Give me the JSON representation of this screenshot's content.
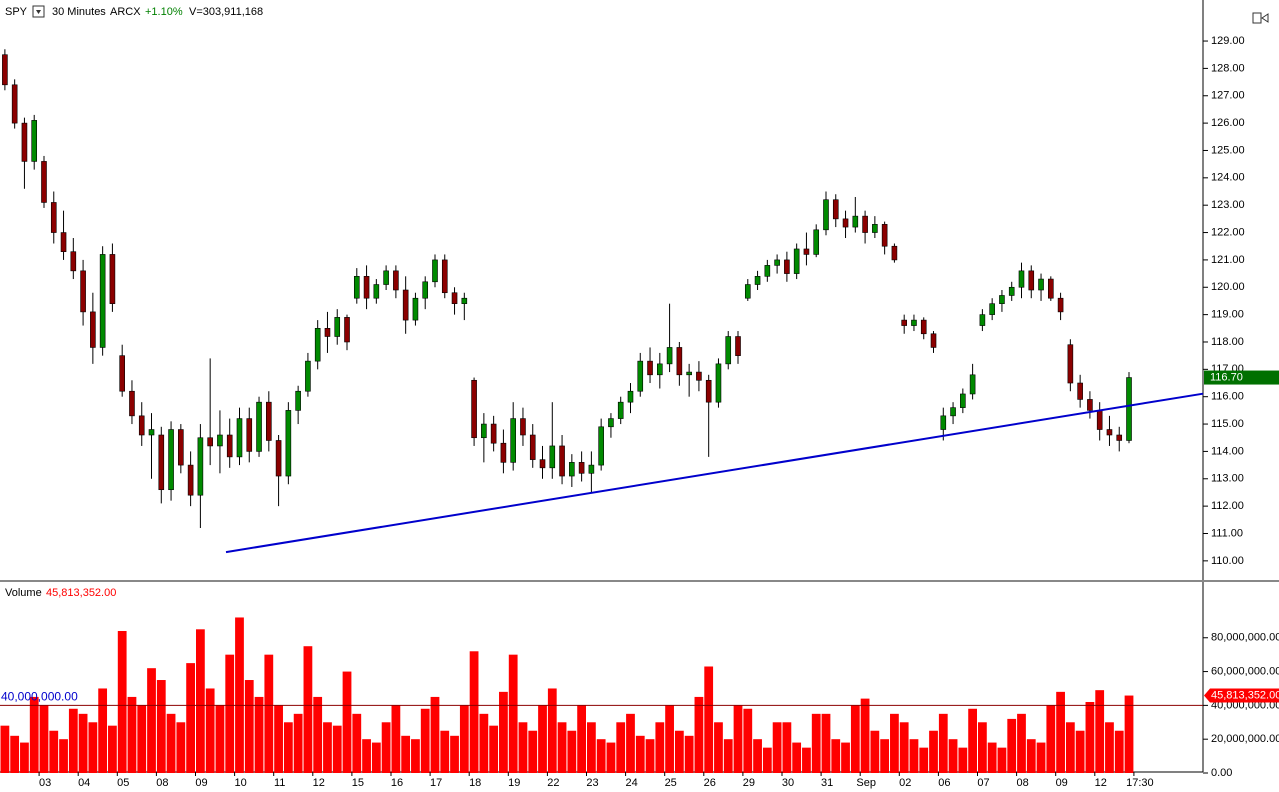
{
  "header": {
    "symbol": "SPY",
    "interval": "30 Minutes",
    "exchange": "ARCX",
    "change": "+1.10%",
    "volume_total": "V=303,911,168"
  },
  "chart_data": {
    "type": "candlestick",
    "days": [
      {
        "label": null,
        "candles": [
          [
            128.5,
            128.7,
            127.2,
            127.4
          ],
          [
            127.4,
            127.6,
            125.8,
            126.0
          ],
          [
            126.0,
            126.2,
            123.6,
            124.6
          ],
          [
            124.6,
            126.3,
            124.3,
            126.1
          ]
        ],
        "volumes": [
          28000000,
          22000000,
          18000000,
          45000000
        ]
      },
      {
        "label": "03",
        "candles": [
          [
            124.6,
            124.8,
            122.9,
            123.1
          ],
          [
            123.1,
            123.5,
            121.6,
            122.0
          ],
          [
            122.0,
            122.8,
            121.0,
            121.3
          ],
          [
            121.3,
            121.8,
            120.3,
            120.6
          ]
        ],
        "volumes": [
          40000000,
          25000000,
          20000000,
          38000000
        ]
      },
      {
        "label": "04",
        "candles": [
          [
            120.6,
            121.0,
            118.6,
            119.1
          ],
          [
            119.1,
            119.8,
            117.2,
            117.8
          ],
          [
            117.8,
            121.5,
            117.5,
            121.2
          ],
          [
            121.2,
            121.6,
            119.1,
            119.4
          ]
        ],
        "volumes": [
          35000000,
          30000000,
          50000000,
          28000000
        ]
      },
      {
        "label": "05",
        "candles": [
          [
            117.5,
            117.9,
            116.0,
            116.2
          ],
          [
            116.2,
            116.6,
            115.0,
            115.3
          ],
          [
            115.3,
            115.8,
            114.2,
            114.6
          ],
          [
            114.6,
            115.4,
            113.0,
            114.8
          ]
        ],
        "volumes": [
          84000000,
          45000000,
          40000000,
          62000000
        ]
      },
      {
        "label": "08",
        "candles": [
          [
            114.6,
            114.9,
            112.1,
            112.6
          ],
          [
            112.6,
            115.1,
            112.2,
            114.8
          ],
          [
            114.8,
            115.0,
            113.2,
            113.5
          ],
          [
            113.5,
            114.0,
            112.0,
            112.4
          ]
        ],
        "volumes": [
          55000000,
          35000000,
          30000000,
          65000000
        ]
      },
      {
        "label": "09",
        "candles": [
          [
            112.4,
            115.0,
            111.2,
            114.5
          ],
          [
            114.5,
            117.4,
            113.5,
            114.2
          ],
          [
            114.2,
            115.5,
            113.2,
            114.6
          ],
          [
            114.6,
            115.2,
            113.4,
            113.8
          ]
        ],
        "volumes": [
          85000000,
          50000000,
          40000000,
          70000000
        ]
      },
      {
        "label": "10",
        "candles": [
          [
            113.8,
            115.6,
            113.5,
            115.2
          ],
          [
            115.2,
            115.6,
            113.6,
            114.0
          ],
          [
            114.0,
            116.0,
            113.8,
            115.8
          ],
          [
            115.8,
            116.2,
            114.0,
            114.4
          ]
        ],
        "volumes": [
          92000000,
          55000000,
          45000000,
          70000000
        ]
      },
      {
        "label": "11",
        "candles": [
          [
            114.4,
            114.6,
            112.0,
            113.1
          ],
          [
            113.1,
            115.8,
            112.8,
            115.5
          ],
          [
            115.5,
            116.4,
            115.0,
            116.2
          ],
          [
            116.2,
            117.6,
            116.0,
            117.3
          ]
        ],
        "volumes": [
          40000000,
          30000000,
          35000000,
          75000000
        ]
      },
      {
        "label": "12",
        "candles": [
          [
            117.3,
            118.8,
            117.0,
            118.5
          ],
          [
            118.5,
            119.1,
            117.6,
            118.2
          ],
          [
            118.2,
            119.2,
            117.9,
            118.9
          ],
          [
            118.9,
            119.0,
            117.7,
            118.0
          ]
        ],
        "volumes": [
          45000000,
          30000000,
          28000000,
          60000000
        ]
      },
      {
        "label": "15",
        "candles": [
          [
            119.6,
            120.7,
            119.4,
            120.4
          ],
          [
            120.4,
            120.8,
            119.2,
            119.6
          ],
          [
            119.6,
            120.3,
            119.4,
            120.1
          ],
          [
            120.1,
            120.8,
            119.9,
            120.6
          ]
        ],
        "volumes": [
          35000000,
          20000000,
          18000000,
          30000000
        ]
      },
      {
        "label": "16",
        "candles": [
          [
            120.6,
            120.8,
            119.6,
            119.9
          ],
          [
            119.9,
            120.4,
            118.3,
            118.8
          ],
          [
            118.8,
            119.8,
            118.6,
            119.6
          ],
          [
            119.6,
            120.4,
            119.2,
            120.2
          ]
        ],
        "volumes": [
          40000000,
          22000000,
          20000000,
          38000000
        ]
      },
      {
        "label": "17",
        "candles": [
          [
            120.2,
            121.2,
            120.0,
            121.0
          ],
          [
            121.0,
            121.2,
            119.6,
            119.8
          ],
          [
            119.8,
            120.0,
            119.0,
            119.4
          ],
          [
            119.4,
            119.8,
            118.8,
            119.6
          ]
        ],
        "volumes": [
          45000000,
          25000000,
          22000000,
          40000000
        ]
      },
      {
        "label": "18",
        "candles": [
          [
            116.6,
            116.7,
            114.2,
            114.5
          ],
          [
            114.5,
            115.4,
            113.6,
            115.0
          ],
          [
            115.0,
            115.3,
            114.0,
            114.3
          ],
          [
            114.3,
            114.8,
            113.2,
            113.6
          ]
        ],
        "volumes": [
          72000000,
          35000000,
          28000000,
          48000000
        ]
      },
      {
        "label": "19",
        "candles": [
          [
            113.6,
            115.8,
            113.3,
            115.2
          ],
          [
            115.2,
            115.6,
            114.2,
            114.6
          ],
          [
            114.6,
            115.0,
            113.4,
            113.7
          ],
          [
            113.7,
            114.2,
            113.0,
            113.4
          ]
        ],
        "volumes": [
          70000000,
          30000000,
          25000000,
          40000000
        ]
      },
      {
        "label": "22",
        "candles": [
          [
            113.4,
            115.8,
            113.0,
            114.2
          ],
          [
            114.2,
            114.6,
            112.8,
            113.1
          ],
          [
            113.1,
            113.9,
            112.7,
            113.6
          ],
          [
            113.6,
            114.0,
            112.9,
            113.2
          ]
        ],
        "volumes": [
          50000000,
          30000000,
          25000000,
          40000000
        ]
      },
      {
        "label": "23",
        "candles": [
          [
            113.2,
            114.0,
            112.5,
            113.5
          ],
          [
            113.5,
            115.2,
            113.3,
            114.9
          ],
          [
            114.9,
            115.4,
            114.5,
            115.2
          ],
          [
            115.2,
            116.0,
            115.0,
            115.8
          ]
        ],
        "volumes": [
          30000000,
          20000000,
          18000000,
          30000000
        ]
      },
      {
        "label": "24",
        "candles": [
          [
            115.8,
            116.5,
            115.4,
            116.2
          ],
          [
            116.2,
            117.6,
            116.0,
            117.3
          ],
          [
            117.3,
            117.8,
            116.5,
            116.8
          ],
          [
            116.8,
            117.6,
            116.3,
            117.2
          ]
        ],
        "volumes": [
          35000000,
          22000000,
          20000000,
          30000000
        ]
      },
      {
        "label": "25",
        "candles": [
          [
            117.2,
            119.4,
            116.9,
            117.8
          ],
          [
            117.8,
            118.0,
            116.4,
            116.8
          ],
          [
            116.8,
            117.2,
            116.0,
            116.9
          ],
          [
            116.9,
            117.3,
            116.2,
            116.6
          ]
        ],
        "volumes": [
          40000000,
          25000000,
          22000000,
          45000000
        ]
      },
      {
        "label": "26",
        "candles": [
          [
            116.6,
            116.8,
            113.8,
            115.8
          ],
          [
            115.8,
            117.4,
            115.6,
            117.2
          ],
          [
            117.2,
            118.4,
            117.0,
            118.2
          ],
          [
            118.2,
            118.4,
            117.2,
            117.5
          ]
        ],
        "volumes": [
          63000000,
          30000000,
          20000000,
          40000000
        ]
      },
      {
        "label": "29",
        "candles": [
          [
            119.6,
            120.3,
            119.5,
            120.1
          ],
          [
            120.1,
            120.6,
            119.9,
            120.4
          ],
          [
            120.4,
            121.0,
            120.2,
            120.8
          ],
          [
            120.8,
            121.2,
            120.5,
            121.0
          ]
        ],
        "volumes": [
          38000000,
          20000000,
          15000000,
          30000000
        ]
      },
      {
        "label": "30",
        "candles": [
          [
            121.0,
            121.3,
            120.2,
            120.5
          ],
          [
            120.5,
            121.6,
            120.3,
            121.4
          ],
          [
            121.4,
            122.0,
            120.8,
            121.2
          ],
          [
            121.2,
            122.3,
            121.1,
            122.1
          ]
        ],
        "volumes": [
          30000000,
          18000000,
          15000000,
          35000000
        ]
      },
      {
        "label": "31",
        "candles": [
          [
            122.1,
            123.5,
            121.9,
            123.2
          ],
          [
            123.2,
            123.4,
            122.2,
            122.5
          ],
          [
            122.5,
            122.8,
            121.8,
            122.2
          ],
          [
            122.2,
            123.3,
            122.0,
            122.6
          ]
        ],
        "volumes": [
          35000000,
          20000000,
          18000000,
          40000000
        ]
      },
      {
        "label": "Sep",
        "candles": [
          [
            122.6,
            122.8,
            121.6,
            122.0
          ],
          [
            122.0,
            122.6,
            121.8,
            122.3
          ],
          [
            122.3,
            122.4,
            121.2,
            121.5
          ],
          [
            121.5,
            121.6,
            120.9,
            121.0
          ]
        ],
        "volumes": [
          44000000,
          25000000,
          20000000,
          35000000
        ]
      },
      {
        "label": "02",
        "candles": [
          [
            118.8,
            119.0,
            118.3,
            118.6
          ],
          [
            118.6,
            119.0,
            118.4,
            118.8
          ],
          [
            118.8,
            118.9,
            118.1,
            118.3
          ],
          [
            118.3,
            118.4,
            117.6,
            117.8
          ]
        ],
        "volumes": [
          30000000,
          20000000,
          15000000,
          25000000
        ]
      },
      {
        "label": "06",
        "candles": [
          [
            114.8,
            115.6,
            114.4,
            115.3
          ],
          [
            115.3,
            115.8,
            115.0,
            115.6
          ],
          [
            115.6,
            116.3,
            115.4,
            116.1
          ],
          [
            116.1,
            117.2,
            115.9,
            116.8
          ]
        ],
        "volumes": [
          35000000,
          20000000,
          15000000,
          38000000
        ]
      },
      {
        "label": "07",
        "candles": [
          [
            118.6,
            119.2,
            118.4,
            119.0
          ],
          [
            119.0,
            119.6,
            118.8,
            119.4
          ],
          [
            119.4,
            119.9,
            119.1,
            119.7
          ],
          [
            119.7,
            120.2,
            119.5,
            120.0
          ]
        ],
        "volumes": [
          30000000,
          18000000,
          15000000,
          32000000
        ]
      },
      {
        "label": "08",
        "candles": [
          [
            120.0,
            120.9,
            119.6,
            120.6
          ],
          [
            120.6,
            120.8,
            119.6,
            119.9
          ],
          [
            119.9,
            120.5,
            119.5,
            120.3
          ],
          [
            120.3,
            120.4,
            119.5,
            119.6
          ]
        ],
        "volumes": [
          35000000,
          20000000,
          18000000,
          40000000
        ]
      },
      {
        "label": "09",
        "candles": [
          [
            119.6,
            119.8,
            118.8,
            119.1
          ],
          [
            117.9,
            118.1,
            116.2,
            116.5
          ],
          [
            116.5,
            116.8,
            115.6,
            115.9
          ],
          [
            115.9,
            116.2,
            115.2,
            115.5
          ]
        ],
        "volumes": [
          48000000,
          30000000,
          25000000,
          42000000
        ]
      },
      {
        "label": "12",
        "candles": [
          [
            115.5,
            115.8,
            114.4,
            114.8
          ],
          [
            114.8,
            115.3,
            114.2,
            114.6
          ],
          [
            114.6,
            114.9,
            114.0,
            114.4
          ],
          [
            114.4,
            116.9,
            114.3,
            116.7
          ]
        ],
        "volumes": [
          49000000,
          30000000,
          25000000,
          45813352
        ]
      },
      {
        "label": "17:30",
        "candles": [],
        "volumes": []
      }
    ],
    "ylim": [
      109.3,
      130.5
    ],
    "yticks": [
      {
        "value": 110,
        "label": "110.00"
      },
      {
        "value": 111,
        "label": "111.00"
      },
      {
        "value": 112,
        "label": "112.00"
      },
      {
        "value": 113,
        "label": "113.00"
      },
      {
        "value": 114,
        "label": "114.00"
      },
      {
        "value": 115,
        "label": "115.00"
      },
      {
        "value": 116,
        "label": "116.00"
      },
      {
        "value": 117,
        "label": "117.00"
      },
      {
        "value": 118,
        "label": "118.00"
      },
      {
        "value": 119,
        "label": "119.00"
      },
      {
        "value": 120,
        "label": "120.00"
      },
      {
        "value": 121,
        "label": "121.00"
      },
      {
        "value": 122,
        "label": "122.00"
      },
      {
        "value": 123,
        "label": "123.00"
      },
      {
        "value": 124,
        "label": "124.00"
      },
      {
        "value": 125,
        "label": "125.00"
      },
      {
        "value": 126,
        "label": "126.00"
      },
      {
        "value": 127,
        "label": "127.00"
      },
      {
        "value": 128,
        "label": "128.00"
      },
      {
        "value": 129,
        "label": "129.00"
      }
    ],
    "last_price": {
      "value": 116.7,
      "label": "116.70"
    },
    "trendline": [
      110.32,
      116.11
    ],
    "colors": {
      "up": "#008a00",
      "down": "#8b0000",
      "trendline": "#0000cc",
      "last_price": "#007000"
    },
    "volume": {
      "title": "Volume",
      "value": 45813352,
      "label": "45,813,352.00",
      "color": "#ff0000",
      "ylim": [
        0,
        111800000
      ],
      "yticks": [
        {
          "value": 0,
          "label": "0.00"
        },
        {
          "value": 20000000,
          "label": "20,000,000.00"
        },
        {
          "value": 40000000,
          "label": "40,000,000.00"
        },
        {
          "value": 60000000,
          "label": "60,000,000.00"
        },
        {
          "value": 80000000,
          "label": "80,000,000.00"
        }
      ],
      "reference": {
        "value": 40000000,
        "label": "40,000,000.00"
      }
    }
  }
}
